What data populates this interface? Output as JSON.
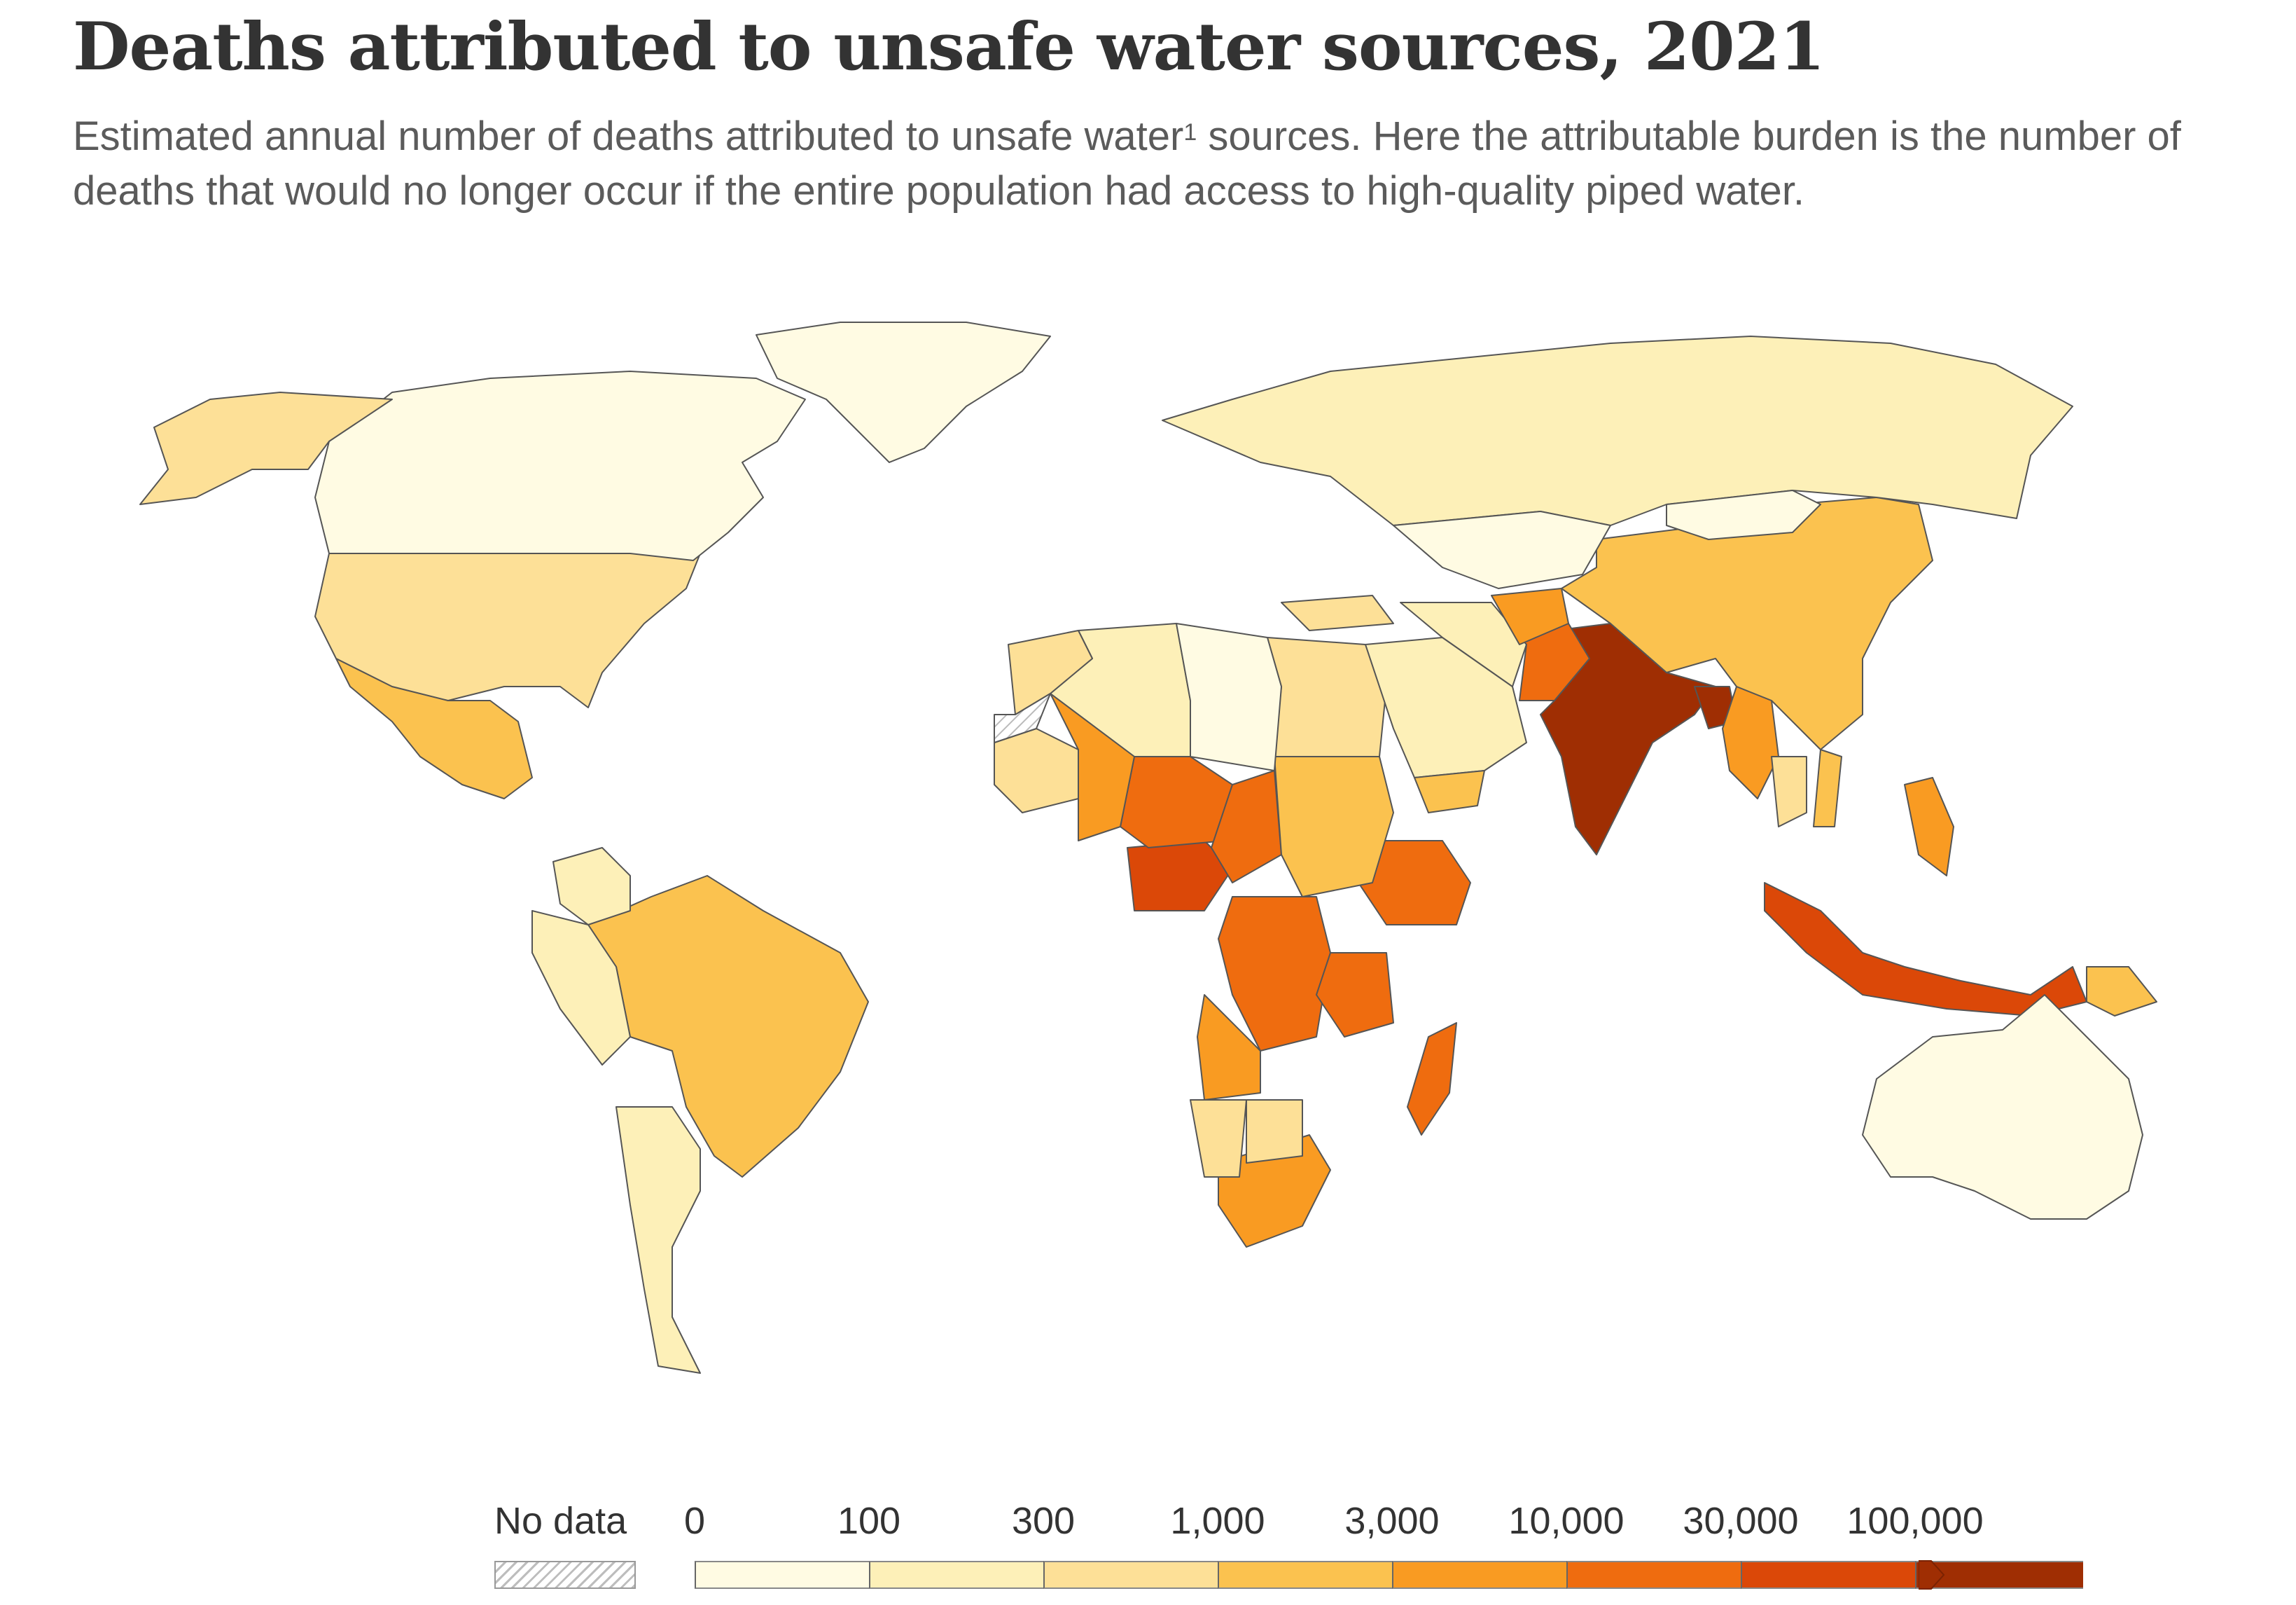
{
  "header": {
    "title": "Deaths attributed to unsafe water sources, 2021",
    "subtitle_a": "Estimated annual number of deaths attributed to unsafe water",
    "subtitle_sup": "1",
    "subtitle_b": " sources. Here the attributable burden is the number of deaths that would no longer occur if the entire population had access to high-quality piped water."
  },
  "legend": {
    "no_data_label": "No data",
    "ticks": [
      "0",
      "100",
      "300",
      "1,000",
      "3,000",
      "10,000",
      "30,000",
      "100,000"
    ],
    "colors": [
      "#fffbe3",
      "#fdf0b8",
      "#fde097",
      "#fbc24f",
      "#f99b22",
      "#ef6c0f",
      "#db4808",
      "#9f2e03"
    ]
  },
  "chart_data": {
    "type": "choropleth",
    "title": "Deaths attributed to unsafe water sources, 2021",
    "metric": "Estimated annual number of deaths attributed to unsafe water sources",
    "bins": [
      "0",
      "100",
      "300",
      "1,000",
      "3,000",
      "10,000",
      "30,000",
      "100,000"
    ],
    "regions": [
      {
        "name": "India",
        "bin": 7
      },
      {
        "name": "Pakistan",
        "bin": 5
      },
      {
        "name": "Bangladesh",
        "bin": 7
      },
      {
        "name": "Nigeria",
        "bin": 6
      },
      {
        "name": "DR Congo",
        "bin": 5
      },
      {
        "name": "Ethiopia",
        "bin": 5
      },
      {
        "name": "Indonesia",
        "bin": 6
      },
      {
        "name": "Madagascar",
        "bin": 5
      },
      {
        "name": "Tanzania",
        "bin": 5
      },
      {
        "name": "Niger",
        "bin": 5
      },
      {
        "name": "Chad",
        "bin": 5
      },
      {
        "name": "Myanmar",
        "bin": 4
      },
      {
        "name": "Sudan",
        "bin": 3
      },
      {
        "name": "Angola",
        "bin": 4
      },
      {
        "name": "South Africa",
        "bin": 4
      },
      {
        "name": "China",
        "bin": 3
      },
      {
        "name": "Brazil",
        "bin": 3
      },
      {
        "name": "Mexico",
        "bin": 3
      },
      {
        "name": "Philippines",
        "bin": 4
      },
      {
        "name": "Papua New Guinea",
        "bin": 3
      },
      {
        "name": "United States",
        "bin": 2
      },
      {
        "name": "Canada",
        "bin": 0
      },
      {
        "name": "Russia",
        "bin": 1
      },
      {
        "name": "Kazakhstan",
        "bin": 0
      },
      {
        "name": "Australia",
        "bin": 0
      },
      {
        "name": "Argentina",
        "bin": 1
      },
      {
        "name": "Peru",
        "bin": 1
      },
      {
        "name": "Colombia",
        "bin": 1
      },
      {
        "name": "Egypt",
        "bin": 2
      },
      {
        "name": "Algeria",
        "bin": 1
      },
      {
        "name": "Libya",
        "bin": 0
      },
      {
        "name": "Saudi Arabia",
        "bin": 1
      },
      {
        "name": "Iran",
        "bin": 1
      },
      {
        "name": "Afghanistan",
        "bin": 4
      },
      {
        "name": "Yemen",
        "bin": 3
      },
      {
        "name": "Turkey",
        "bin": 2
      },
      {
        "name": "Mongolia",
        "bin": 0
      },
      {
        "name": "Thailand",
        "bin": 2
      },
      {
        "name": "Vietnam",
        "bin": 3
      },
      {
        "name": "Namibia",
        "bin": 2
      },
      {
        "name": "Botswana",
        "bin": 2
      },
      {
        "name": "Mali",
        "bin": 4
      },
      {
        "name": "Mauritania",
        "bin": 2
      },
      {
        "name": "Morocco",
        "bin": 2
      },
      {
        "name": "Greenland",
        "bin": 0
      },
      {
        "name": "Alaska (US)",
        "bin": 2
      },
      {
        "name": "Western Sahara",
        "bin": -1
      }
    ]
  }
}
